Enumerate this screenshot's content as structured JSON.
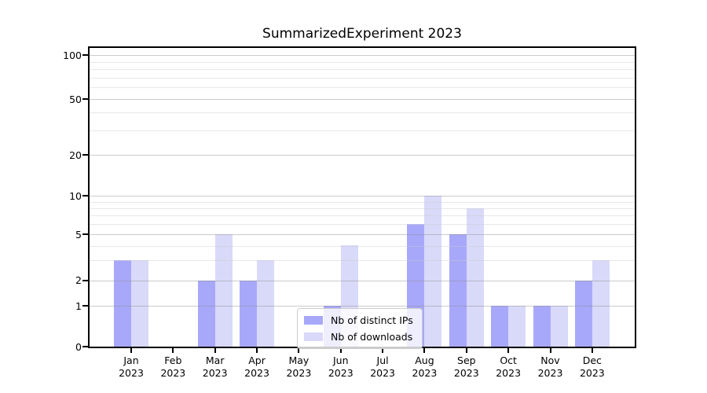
{
  "title": "SummarizedExperiment 2023",
  "year_label": "2023",
  "chart_data": {
    "type": "bar",
    "title": "SummarizedExperiment 2023",
    "months": [
      "Jan",
      "Feb",
      "Mar",
      "Apr",
      "May",
      "Jun",
      "Jul",
      "Aug",
      "Sep",
      "Oct",
      "Nov",
      "Dec"
    ],
    "x_categories": [
      "Jan 2023",
      "Feb 2023",
      "Mar 2023",
      "Apr 2023",
      "May 2023",
      "Jun 2023",
      "Jul 2023",
      "Aug 2023",
      "Sep 2023",
      "Oct 2023",
      "Nov 2023",
      "Dec 2023"
    ],
    "series": [
      {
        "name": "Nb of distinct IPs",
        "color": "#a8a8fa",
        "values": [
          3,
          0,
          2,
          2,
          0,
          1,
          0,
          6,
          5,
          1,
          1,
          2
        ]
      },
      {
        "name": "Nb of downloads",
        "color": "#d9d9f9",
        "values": [
          3,
          0,
          5,
          3,
          0,
          4,
          0,
          10,
          8,
          1,
          1,
          3
        ]
      }
    ],
    "y_axis": {
      "scale": "log-like",
      "major_ticks": [
        0,
        1,
        2,
        5,
        10,
        20,
        50,
        100
      ],
      "minor_gridlines": [
        3,
        4,
        6,
        7,
        8,
        9,
        30,
        40,
        60,
        70,
        80,
        90
      ],
      "range": [
        0,
        110
      ]
    },
    "grid": true,
    "legend": {
      "position": "lower center-left",
      "labels": [
        "Nb of distinct IPs",
        "Nb of downloads"
      ]
    }
  }
}
